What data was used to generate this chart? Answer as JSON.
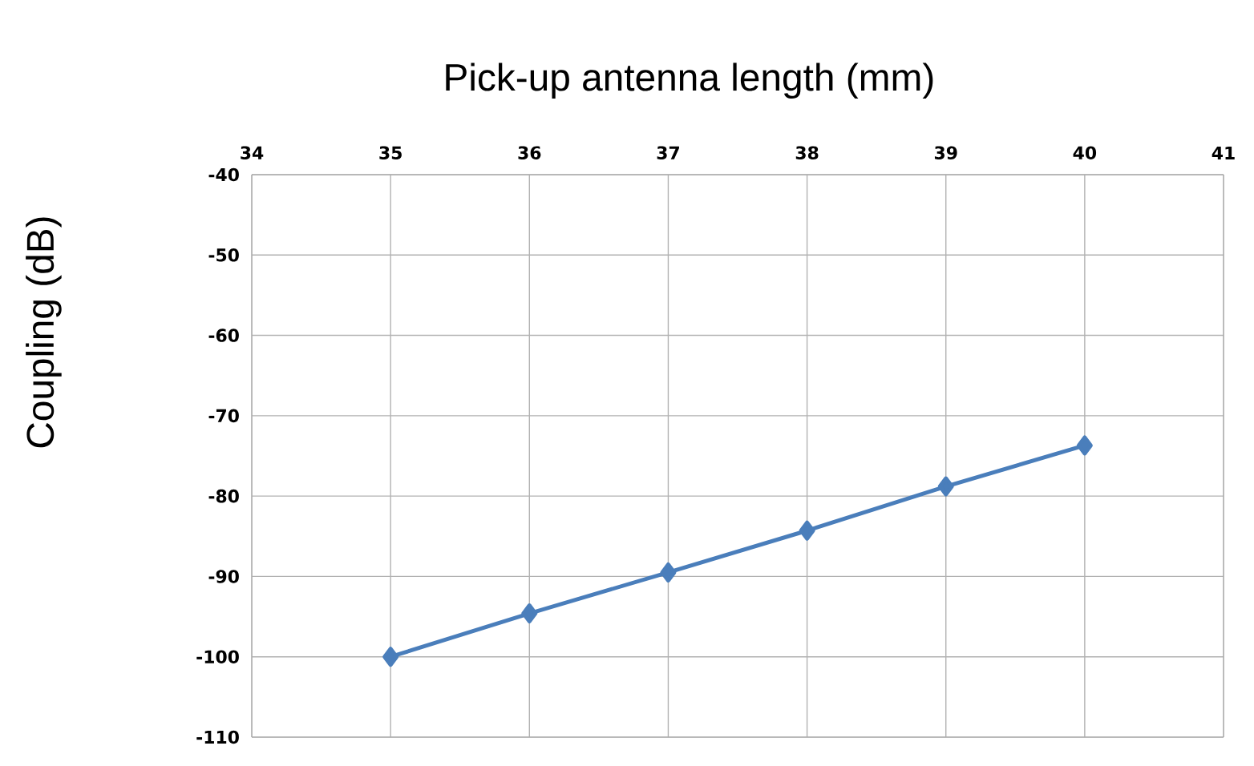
{
  "chart_data": {
    "type": "line",
    "title": "Pick-up antenna length (mm)",
    "ylabel": "Coupling (dB)",
    "x": [
      35,
      36,
      37,
      38,
      39,
      40
    ],
    "series": [
      {
        "color": "#4a7ebb",
        "values": [
          -100,
          -94.6,
          -89.5,
          -84.3,
          -78.8,
          -73.7
        ]
      }
    ],
    "xlim": [
      34,
      41
    ],
    "xticks": [
      34,
      35,
      36,
      37,
      38,
      39,
      40,
      41
    ],
    "ylim": [
      -110,
      -40
    ],
    "yticks": [
      -110,
      -100,
      -90,
      -80,
      -70,
      -60,
      -50,
      -40
    ],
    "grid": true,
    "marker": "diamond",
    "line_style": "solid"
  }
}
